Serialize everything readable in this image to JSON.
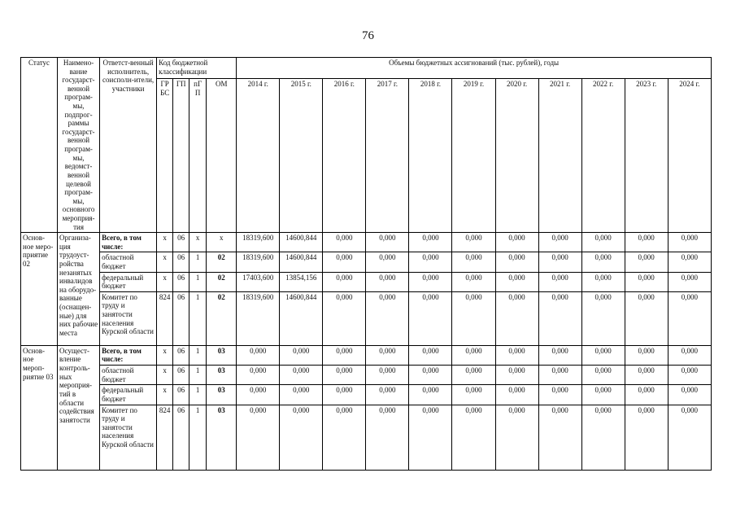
{
  "page_number": "76",
  "table": {
    "header": {
      "status": "Статус",
      "program_name": "Наимено-вание государст-венной програм-мы, подпрог-раммы государст-венной програм-мы, ведомст-венной целевой програм-мы, основного мероприя-тия",
      "executor": "Ответст-венный исполнитель, соисполн-ители, участники",
      "budget_code": "Код бюджетной классификации",
      "code_columns": [
        "ГР БС",
        "ГП",
        "пГП",
        "ОМ"
      ],
      "volumes_title": "Объемы бюджетных ассигнований (тыс. рублей), годы",
      "year_columns": [
        "2014 г.",
        "2015 г.",
        "2016 г.",
        "2017 г.",
        "2018 г.",
        "2019 г.",
        "2020 г.",
        "2021 г.",
        "2022 г.",
        "2023 г.",
        "2024 г."
      ]
    },
    "blocks": [
      {
        "status": "Основ-ное меро-приятие 02",
        "program_name": "Организа-ция трудоуст-ройства незанятых инвалидов на оборудо-ванные (оснащен-ные) для них рабочие места",
        "rows": [
          {
            "executor": "Всего, в том числе:",
            "executor_bold": true,
            "codes": [
              "x",
              "06",
              "x",
              "x"
            ],
            "values": [
              "18319,600",
              "14600,844",
              "0,000",
              "0,000",
              "0,000",
              "0,000",
              "0,000",
              "0,000",
              "0,000",
              "0,000",
              "0,000"
            ]
          },
          {
            "executor": "областной бюджет",
            "executor_bold": false,
            "codes": [
              "x",
              "06",
              "1",
              "02"
            ],
            "values": [
              "18319,600",
              "14600,844",
              "0,000",
              "0,000",
              "0,000",
              "0,000",
              "0,000",
              "0,000",
              "0,000",
              "0,000",
              "0,000"
            ]
          },
          {
            "executor": "федеральный бюджет",
            "executor_bold": false,
            "codes": [
              "x",
              "06",
              "1",
              "02"
            ],
            "values": [
              "17403,600",
              "13854,156",
              "0,000",
              "0,000",
              "0,000",
              "0,000",
              "0,000",
              "0,000",
              "0,000",
              "0,000",
              "0,000"
            ]
          },
          {
            "executor": "Комитет по труду и занятости населения Курской области",
            "executor_bold": false,
            "codes": [
              "824",
              "06",
              "1",
              "02"
            ],
            "values": [
              "18319,600",
              "14600,844",
              "0,000",
              "0,000",
              "0,000",
              "0,000",
              "0,000",
              "0,000",
              "0,000",
              "0,000",
              "0,000"
            ]
          }
        ]
      },
      {
        "status": "Основ-ное мероп-риятие 03",
        "program_name": "Осущест-вление контроль-ных мероприя-тий в области содействия занятости",
        "rows": [
          {
            "executor": "Всего, в том числе:",
            "executor_bold": true,
            "codes": [
              "x",
              "06",
              "1",
              "03"
            ],
            "values": [
              "0,000",
              "0,000",
              "0,000",
              "0,000",
              "0,000",
              "0,000",
              "0,000",
              "0,000",
              "0,000",
              "0,000",
              "0,000"
            ]
          },
          {
            "executor": "областной бюджет",
            "executor_bold": false,
            "codes": [
              "x",
              "06",
              "1",
              "03"
            ],
            "values": [
              "0,000",
              "0,000",
              "0,000",
              "0,000",
              "0,000",
              "0,000",
              "0,000",
              "0,000",
              "0,000",
              "0,000",
              "0,000"
            ]
          },
          {
            "executor": "федеральный бюджет",
            "executor_bold": false,
            "codes": [
              "x",
              "06",
              "1",
              "03"
            ],
            "values": [
              "0,000",
              "0,000",
              "0,000",
              "0,000",
              "0,000",
              "0,000",
              "0,000",
              "0,000",
              "0,000",
              "0,000",
              "0,000"
            ]
          },
          {
            "executor": "Комитет по труду и занятости населения Курской области",
            "executor_bold": false,
            "codes": [
              "824",
              "06",
              "1",
              "03"
            ],
            "values": [
              "0,000",
              "0,000",
              "0,000",
              "0,000",
              "0,000",
              "0,000",
              "0,000",
              "0,000",
              "0,000",
              "0,000",
              "0,000"
            ]
          }
        ]
      }
    ]
  }
}
